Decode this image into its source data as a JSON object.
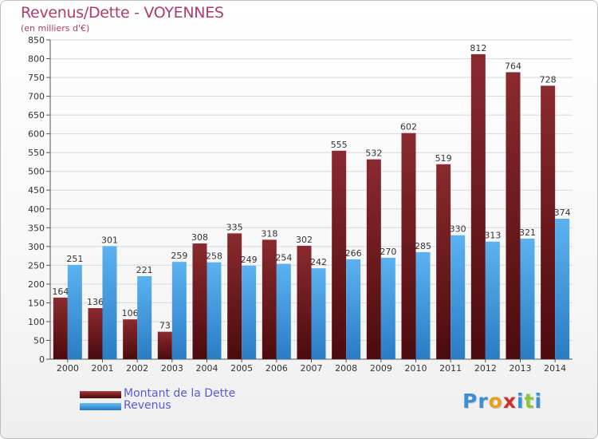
{
  "header": {
    "title": "Revenus/Dette - VOYENNES",
    "subtitle": "(en milliers d'€)"
  },
  "legend": {
    "items": [
      {
        "label": "Montant de la Dette",
        "color": "#7a1e22"
      },
      {
        "label": "Revenus",
        "color": "#3d9ae0"
      }
    ]
  },
  "logo": {
    "letters": [
      {
        "char": "P",
        "color": "#3a8fd6"
      },
      {
        "char": "r",
        "color": "#3a8fd6"
      },
      {
        "char": "o",
        "color": "#e8a020"
      },
      {
        "char": "x",
        "color": "#d0302a"
      },
      {
        "char": "i",
        "color": "#3a8fd6"
      },
      {
        "char": "t",
        "color": "#8cc63f"
      },
      {
        "char": "i",
        "color": "#3a8fd6"
      }
    ]
  },
  "chart_data": {
    "type": "bar",
    "title": "Revenus/Dette - VOYENNES",
    "subtitle": "(en milliers d'€)",
    "xlabel": "",
    "ylabel": "",
    "ylim": [
      0,
      850
    ],
    "yticks": [
      0,
      50,
      100,
      150,
      200,
      250,
      300,
      350,
      400,
      450,
      500,
      550,
      600,
      650,
      700,
      750,
      800,
      850
    ],
    "grid": true,
    "legend_position": "bottom-left",
    "categories": [
      "2000",
      "2001",
      "2002",
      "2003",
      "2004",
      "2005",
      "2006",
      "2007",
      "2008",
      "2009",
      "2010",
      "2011",
      "2012",
      "2013",
      "2014"
    ],
    "series": [
      {
        "name": "Montant de la Dette",
        "color": "#7a1e22",
        "values": [
          164,
          136,
          106,
          73,
          308,
          335,
          318,
          302,
          555,
          532,
          602,
          519,
          812,
          764,
          728
        ]
      },
      {
        "name": "Revenus",
        "color": "#3d9ae0",
        "values": [
          251,
          301,
          221,
          259,
          258,
          249,
          254,
          242,
          266,
          270,
          285,
          330,
          313,
          321,
          374
        ]
      }
    ]
  }
}
